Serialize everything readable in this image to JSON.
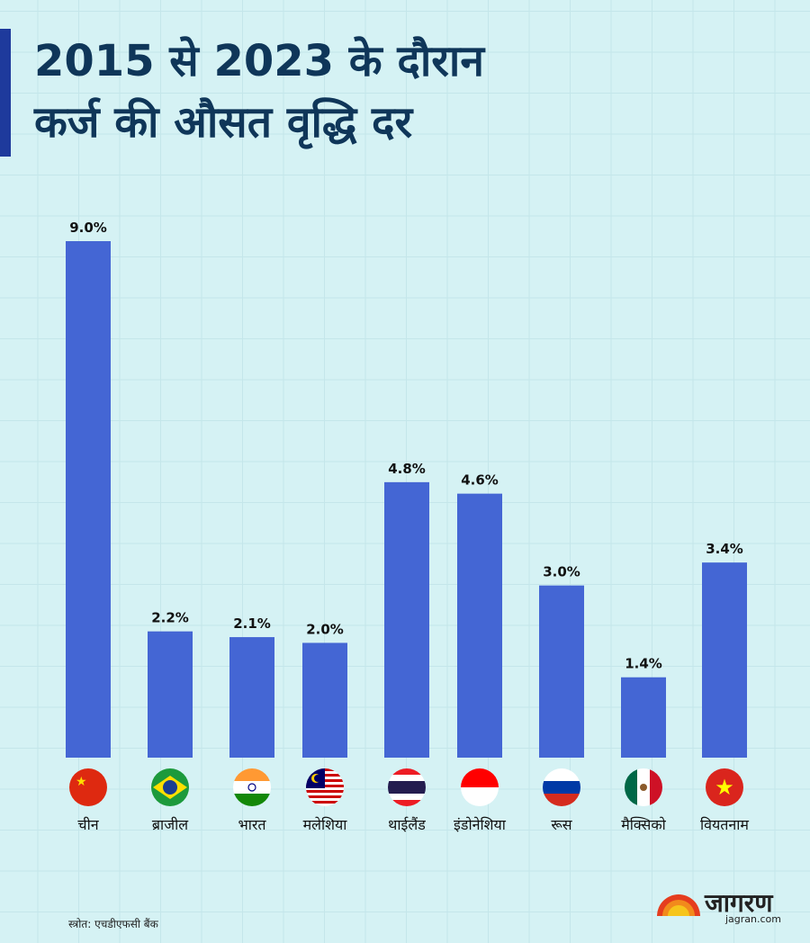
{
  "title_line1": "2015 से 2023 के दौरान",
  "title_line2": "कर्ज की औसत वृद्धि दर",
  "source": "स्त्रोत: एचडीएफसी बैंक",
  "logo": {
    "name": "जागरण",
    "url": "jagran.com"
  },
  "colors": {
    "bar": "#4466d4",
    "title": "#0f3659",
    "accent": "#1e3a9c"
  },
  "chart_data": {
    "type": "bar",
    "title": "2015 से 2023 के दौरान कर्ज की औसत वृद्धि दर",
    "categories": [
      "चीन",
      "ब्राजील",
      "भारत",
      "मलेशिया",
      "थाईलैंड",
      "इंडोनेशिया",
      "रूस",
      "मैक्सिको",
      "वियतनाम"
    ],
    "flags": [
      "china",
      "brazil",
      "india",
      "malaysia",
      "thailand",
      "indonesia",
      "russia",
      "mexico",
      "vietnam"
    ],
    "values": [
      9.0,
      2.2,
      2.1,
      2.0,
      4.8,
      4.6,
      3.0,
      1.4,
      3.4
    ],
    "value_labels": [
      "9.0%",
      "2.2%",
      "2.1%",
      "2.0%",
      "4.8%",
      "4.6%",
      "3.0%",
      "1.4%",
      "3.4%"
    ],
    "xlabel": "",
    "ylabel": "",
    "ylim": [
      0,
      9.0
    ],
    "grid": true
  }
}
